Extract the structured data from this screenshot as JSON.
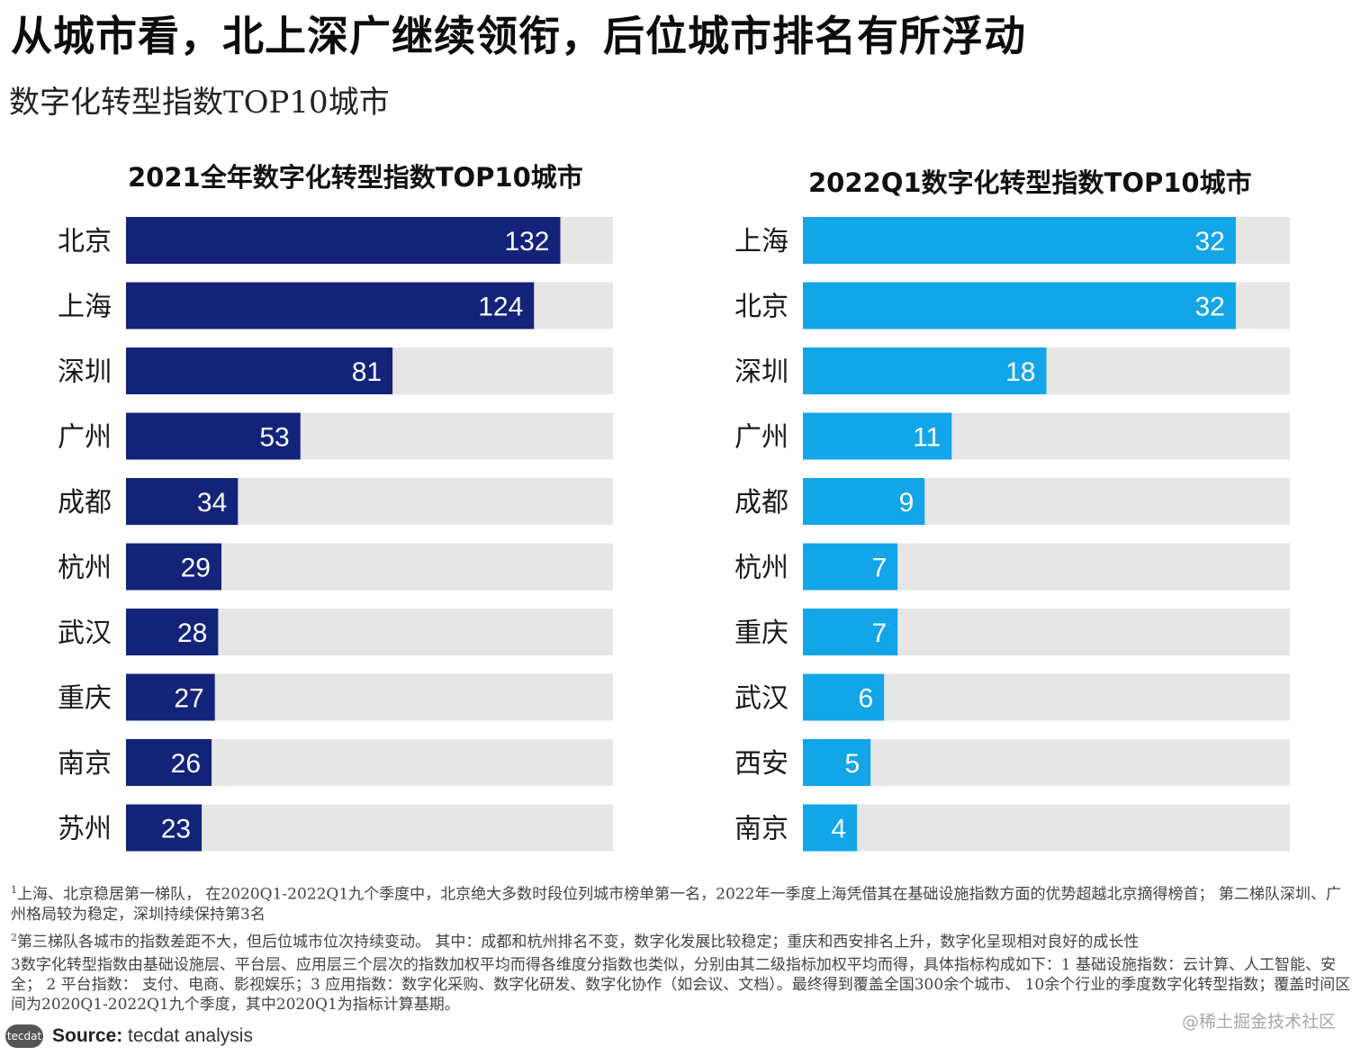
{
  "header": {
    "title": "从城市看，北上深广继续领衔，后位城市排名有所浮动",
    "subtitle": "数字化转型指数TOP10城市"
  },
  "colors": {
    "left_bar": "#13237a",
    "right_bar": "#12a5e8",
    "track": "#e6e6e6",
    "value_text": "#ffffff"
  },
  "chart_data": [
    {
      "type": "bar",
      "orientation": "horizontal",
      "title": "2021全年数字化转型指数TOP10城市",
      "categories": [
        "北京",
        "上海",
        "深圳",
        "广州",
        "成都",
        "杭州",
        "武汉",
        "重庆",
        "南京",
        "苏州"
      ],
      "values": [
        132,
        124,
        81,
        53,
        34,
        29,
        28,
        27,
        26,
        23
      ],
      "xlim": [
        0,
        148
      ],
      "legend": "none",
      "grid": false,
      "bar_color": "#13237a"
    },
    {
      "type": "bar",
      "orientation": "horizontal",
      "title": "2022Q1数字化转型指数TOP10城市",
      "categories": [
        "上海",
        "北京",
        "深圳",
        "广州",
        "成都",
        "杭州",
        "重庆",
        "武汉",
        "西安",
        "南京"
      ],
      "values": [
        32,
        32,
        18,
        11,
        9,
        7,
        7,
        6,
        5,
        4
      ],
      "xlim": [
        0,
        36
      ],
      "legend": "none",
      "grid": false,
      "bar_color": "#12a5e8"
    }
  ],
  "notes": [
    {
      "mark": "1",
      "text": "上海、北京稳居第一梯队， 在2020Q1-2022Q1九个季度中，北京绝大多数时段位列城市榜单第一名，2022年一季度上海凭借其在基础设施指数方面的优势超越北京摘得榜首； 第二梯队深圳、广州格局较为稳定，深圳持续保持第3名"
    },
    {
      "mark": "2",
      "text": "第三梯队各城市的指数差距不大，但后位城市位次持续变动。 其中：成都和杭州排名不变，数字化发展比较稳定；重庆和西安排名上升，数字化呈现相对良好的成长性"
    },
    {
      "mark": "",
      "text": "3数字化转型指数由基础设施层、平台层、应用层三个层次的指数加权平均而得各维度分指数也类似，分别由其二级指标加权平均而得，具体指标构成如下：1 基础设施指数：云计算、人工智能、安全； 2 平台指数： 支付、电商、影视娱乐；3 应用指数：数字化采购、数字化研发、数字化协作（如会议、文档）。最终得到覆盖全国300余个城市、 10余个行业的季度数字化转型指数；覆盖时间区间为2020Q1-2022Q1九个季度，其中2020Q1为指标计算基期。"
    }
  ],
  "footer": {
    "logo_text": "tecdat",
    "source_label": "Source:",
    "source_text": "tecdat analysis",
    "watermark": "@稀土掘金技术社区"
  }
}
